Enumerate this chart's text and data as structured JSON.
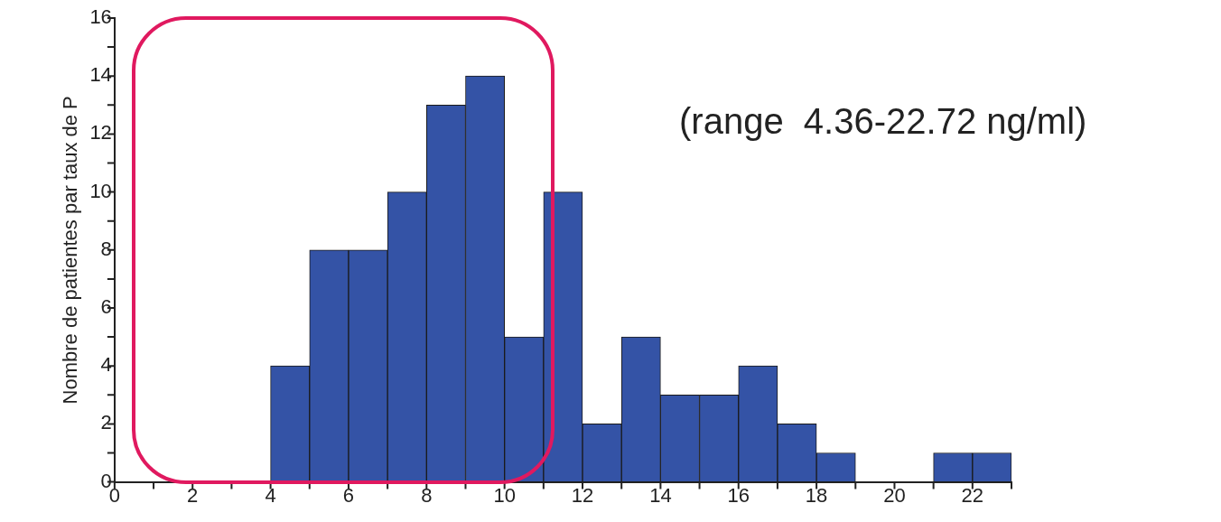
{
  "chart_data": {
    "type": "histogram",
    "ylabel": "Nombre de patientes par taux de P",
    "annotations": [
      "(range  4.36-22.72 ng/ml)"
    ],
    "bins": [
      0,
      1,
      2,
      3,
      4,
      5,
      6,
      7,
      8,
      9,
      10,
      11,
      12,
      13,
      14,
      15,
      16,
      17,
      18,
      19,
      20,
      21,
      22,
      23
    ],
    "values": [
      0,
      0,
      0,
      0,
      4,
      8,
      8,
      10,
      13,
      14,
      5,
      10,
      2,
      5,
      3,
      3,
      4,
      2,
      1,
      0,
      0,
      1,
      1
    ],
    "color": "#3453a6",
    "xlim": [
      0,
      23
    ],
    "xticks": [
      0,
      {
        "value": 1,
        "label": null
      },
      2,
      {
        "value": 3,
        "label": null
      },
      4,
      {
        "value": 5,
        "label": null
      },
      6,
      {
        "value": 7,
        "label": null
      },
      8,
      {
        "value": 9,
        "label": null
      },
      10,
      {
        "value": 11,
        "label": null
      },
      12,
      {
        "value": 13,
        "label": null
      },
      14,
      {
        "value": 15,
        "label": null
      },
      16,
      {
        "value": 17,
        "label": null
      },
      18,
      {
        "value": 19,
        "label": null
      },
      20,
      {
        "value": 21,
        "label": null
      },
      22,
      {
        "value": 23,
        "label": null
      }
    ],
    "ylim": [
      0,
      16
    ],
    "yticks": [
      0,
      {
        "value": 1,
        "label": null
      },
      2,
      {
        "value": 3,
        "label": null
      },
      4,
      {
        "value": 5,
        "label": null
      },
      6,
      {
        "value": 7,
        "label": null
      },
      8,
      {
        "value": 9,
        "label": null
      },
      10,
      {
        "value": 11,
        "label": null
      },
      12,
      {
        "value": 13,
        "label": null
      },
      14,
      {
        "value": 15,
        "label": null
      },
      16
    ],
    "grid": false,
    "legend": false
  }
}
